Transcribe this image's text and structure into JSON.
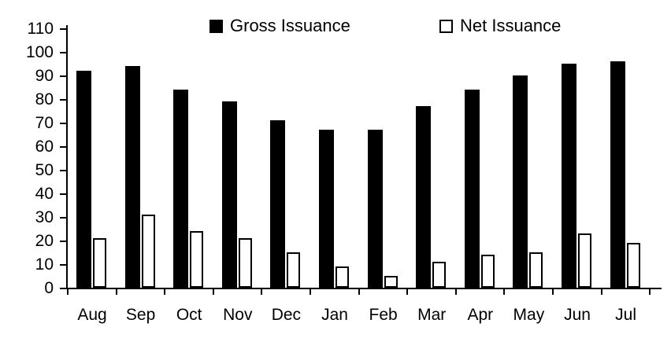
{
  "legend": {
    "gross": {
      "label": "Gross Issuance",
      "swatch": "filled-black-square"
    },
    "net": {
      "label": "Net Issuance",
      "swatch": "open-white-square"
    }
  },
  "colors": {
    "gross_fill": "#000000",
    "net_fill": "#ffffff",
    "net_stroke": "#000000",
    "axis": "#000000",
    "text": "#000000",
    "background": "#ffffff"
  },
  "chart_data": {
    "type": "bar",
    "title": "",
    "xlabel": "",
    "ylabel": "",
    "categories": [
      "Aug",
      "Sep",
      "Oct",
      "Nov",
      "Dec",
      "Jan",
      "Feb",
      "Mar",
      "Apr",
      "May",
      "Jun",
      "Jul"
    ],
    "series": [
      {
        "name": "Gross Issuance",
        "fill": "#000000",
        "stroke": "#000000",
        "values": [
          92,
          94,
          84,
          79,
          71,
          67,
          67,
          77,
          84,
          90,
          95,
          96
        ]
      },
      {
        "name": "Net Issuance",
        "fill": "#ffffff",
        "stroke": "#000000",
        "values": [
          21,
          31,
          24,
          21,
          15,
          9,
          5,
          11,
          14,
          15,
          23,
          19
        ]
      }
    ],
    "ylim": [
      0,
      110
    ],
    "yticks": [
      0,
      10,
      20,
      30,
      40,
      50,
      60,
      70,
      80,
      90,
      100,
      110
    ],
    "grid": false,
    "legend_position": "top"
  }
}
